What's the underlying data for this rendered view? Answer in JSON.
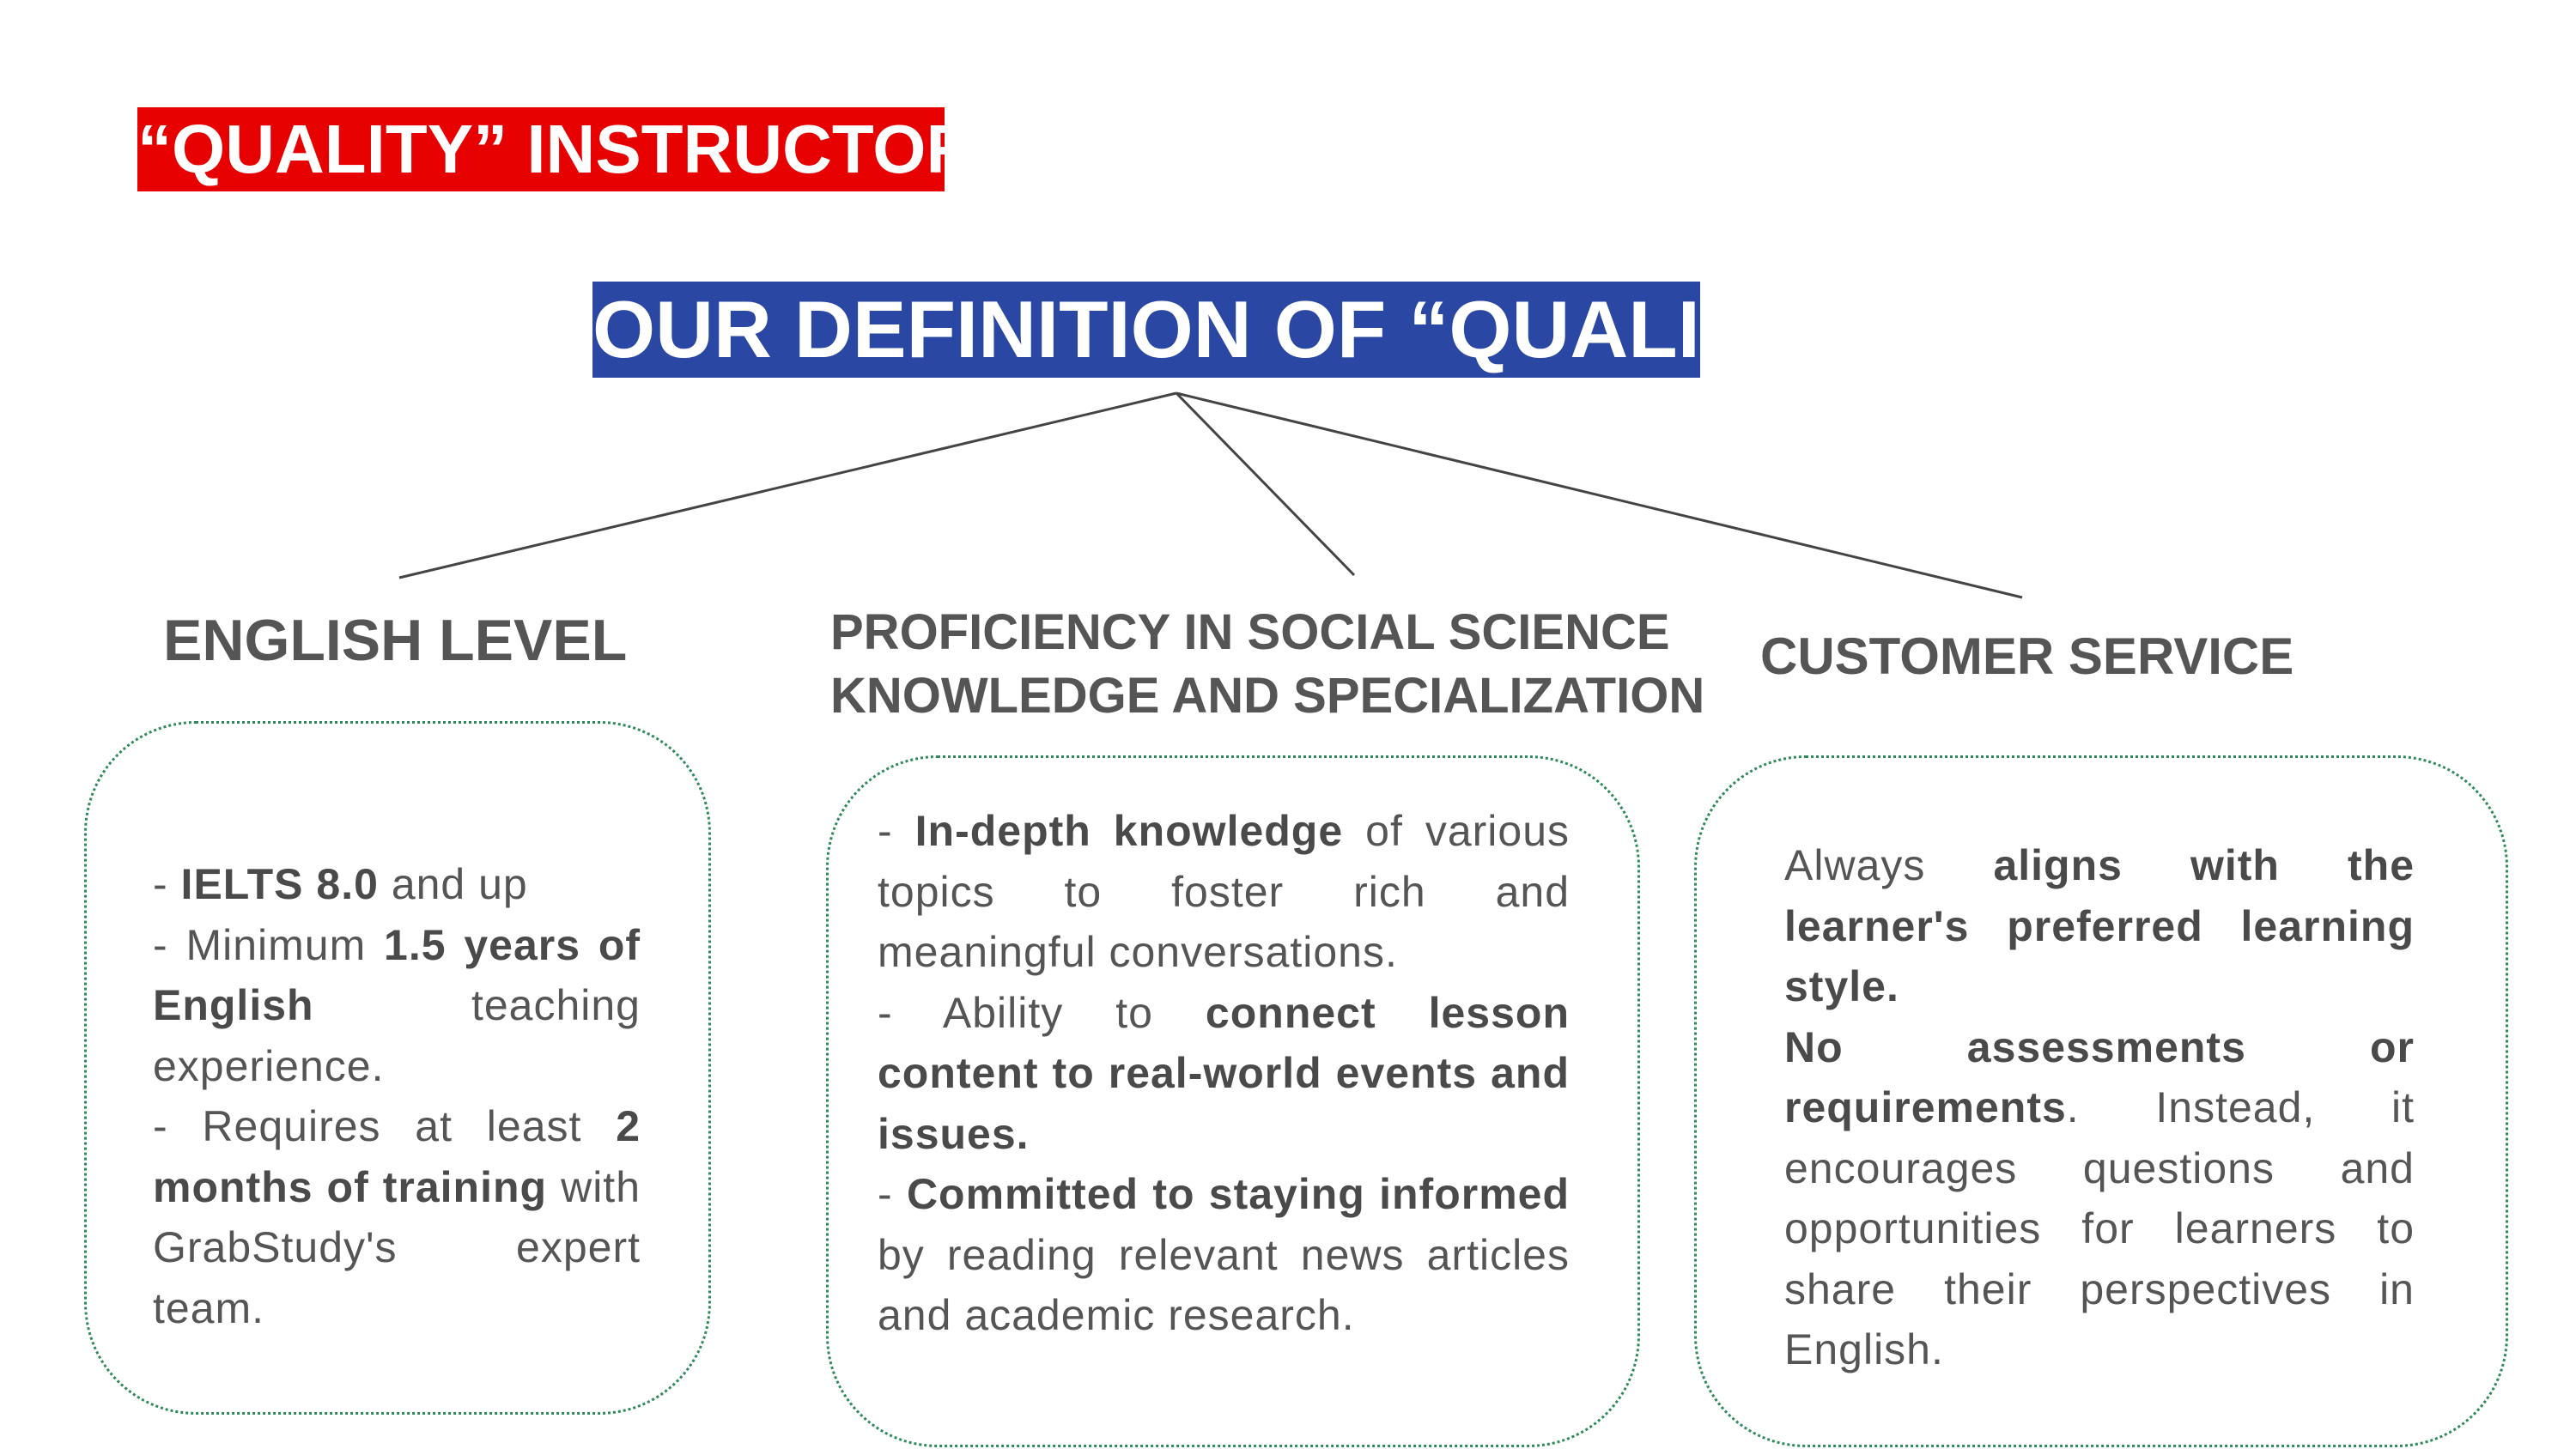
{
  "header": {
    "title": "“QUALITY” INSTRUCTORS",
    "definition": "OUR DEFINITION OF “QUALITY”"
  },
  "colors": {
    "title_bg": "#e60000",
    "definition_bg": "#2a48a3",
    "heading_text": "#555555",
    "card_border": "#2e8a5a"
  },
  "columns": {
    "english": {
      "heading": "ENGLISH LEVEL",
      "items": [
        {
          "prefix": "- ",
          "b1": "IELTS 8.0",
          "t1": " and up"
        },
        {
          "prefix": "- Minimum ",
          "b1": "1.5 years of English",
          "t1": " teaching experience."
        },
        {
          "prefix": "- Requires at least ",
          "b1": "2 months of training",
          "t1": " with GrabStudy's expert team."
        }
      ]
    },
    "proficiency": {
      "heading": "PROFICIENCY IN SOCIAL SCIENCE KNOWLEDGE AND SPECIALIZATION",
      "items": [
        {
          "prefix": "- ",
          "b1": "In-depth knowledge",
          "t1": " of various topics to foster rich and meaningful conversations."
        },
        {
          "prefix": "- Ability to ",
          "b1": "connect lesson content to real-world events and issues.",
          "t1": ""
        },
        {
          "prefix": "- ",
          "b1": "Committed to staying informed",
          "t1": " by reading relevant news articles and academic research."
        }
      ]
    },
    "customer": {
      "heading": "CUSTOMER SERVICE",
      "items": [
        {
          "prefix": "Always ",
          "b1": "aligns with the learner's preferred learning style.",
          "t1": ""
        },
        {
          "prefix": "",
          "b1": "No assessments or requirements",
          "t1": ". Instead, it encourages questions and opportunities for learners to share their perspectives in English."
        }
      ]
    }
  }
}
